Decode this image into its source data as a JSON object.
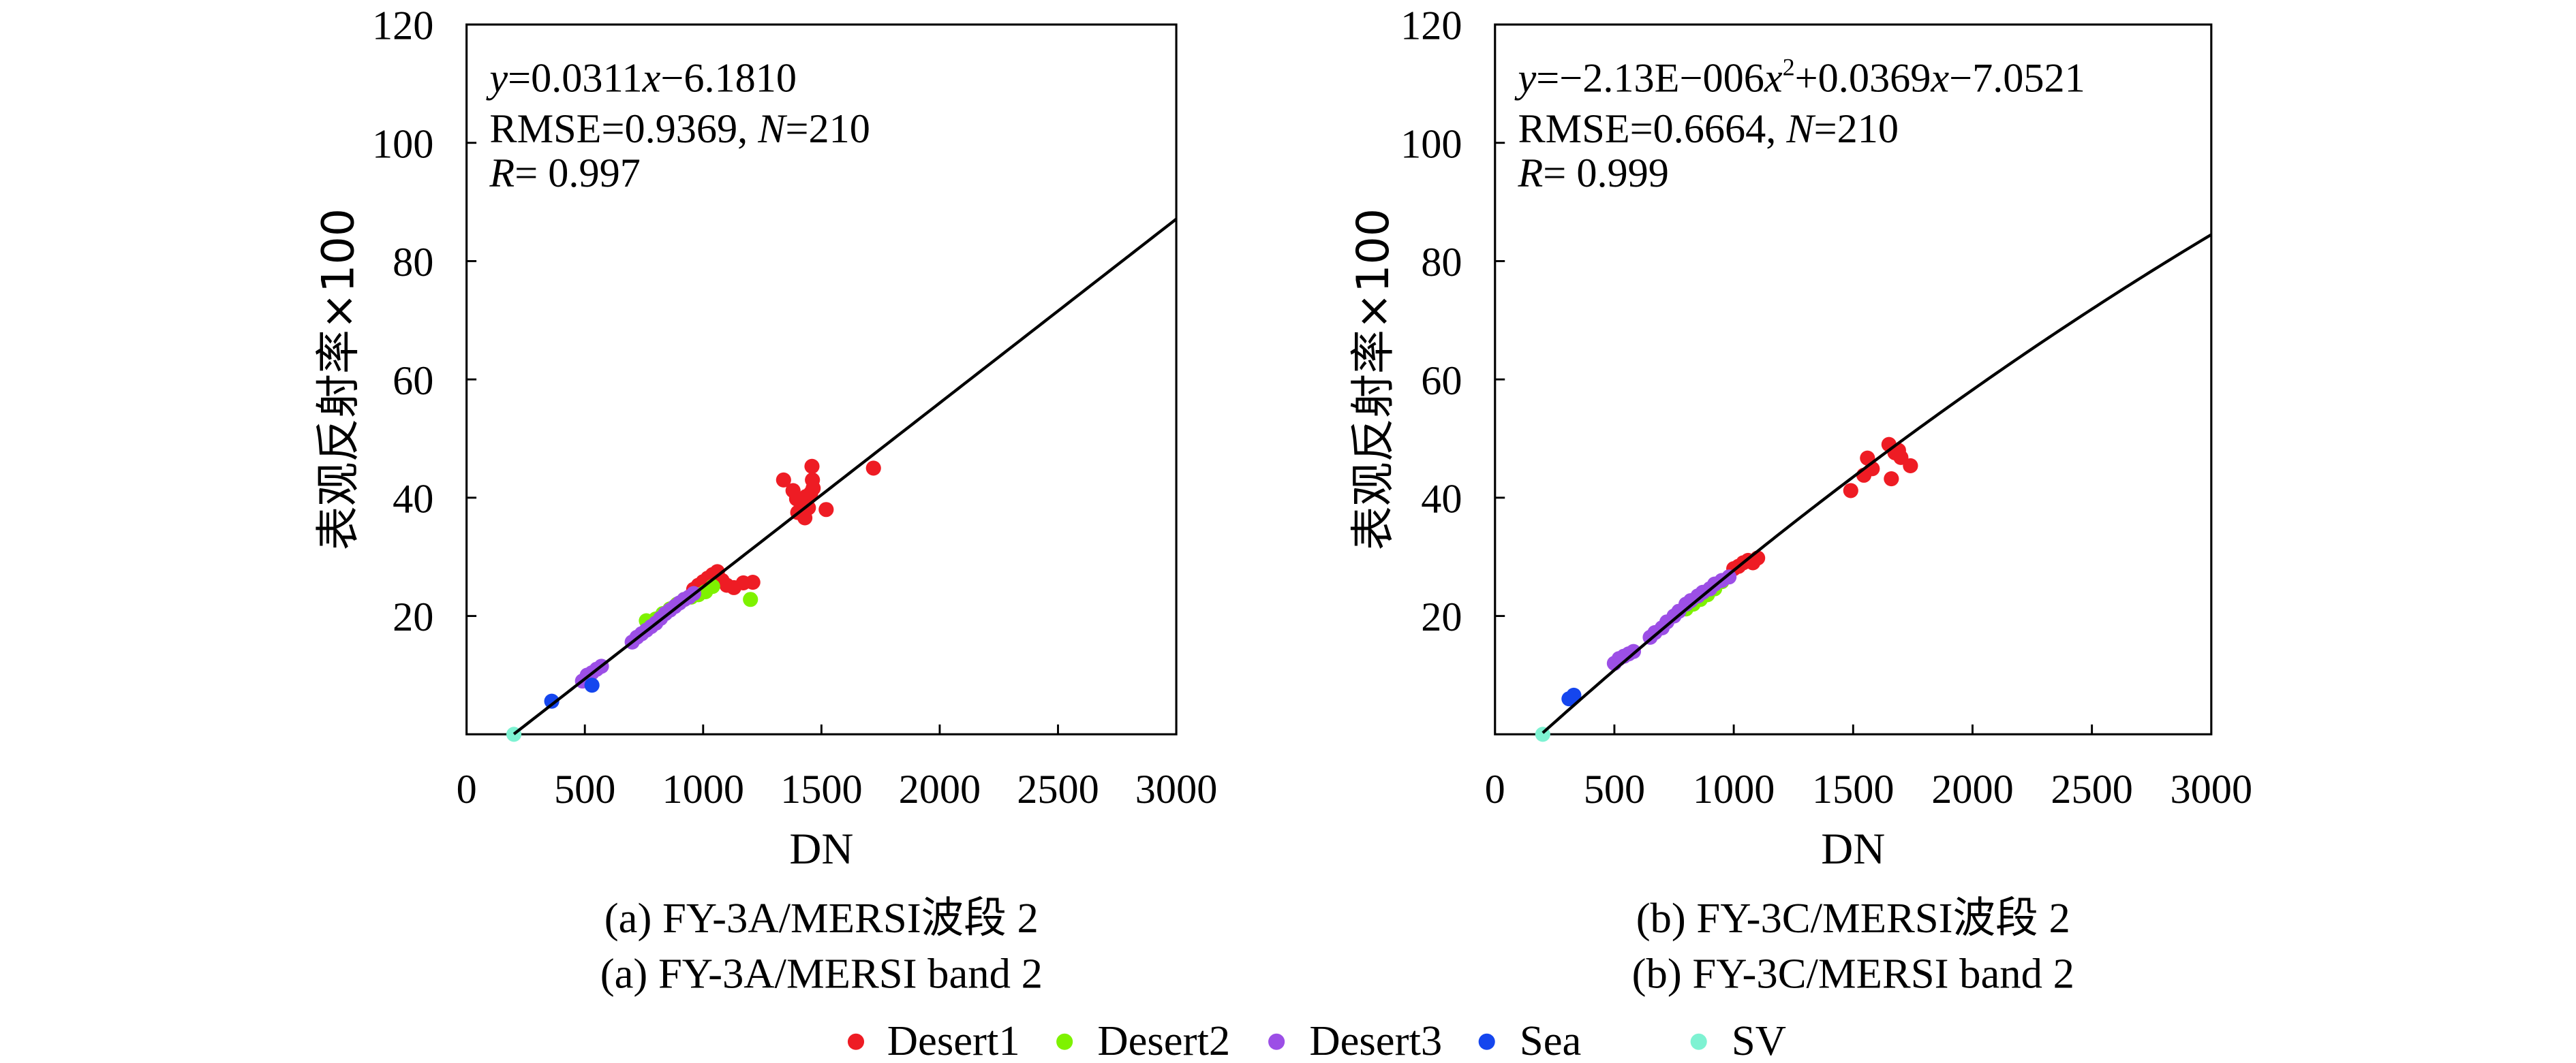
{
  "chart_data": [
    {
      "type": "scatter",
      "panel_id": "a",
      "xlabel": "DN",
      "ylabel": "表观反射率×100",
      "xlim": [
        0,
        3000
      ],
      "ylim": [
        0,
        120
      ],
      "xticks": [
        0,
        500,
        1000,
        1500,
        2000,
        2500,
        3000
      ],
      "yticks": [
        20,
        40,
        60,
        80,
        100,
        120
      ],
      "equation": {
        "line1": {
          "y": "y",
          "body": "=0.0311",
          "x": "x",
          "tail": "−6.1810"
        },
        "line2": {
          "pre": "RMSE=0.9369, ",
          "n": "N",
          "post": "=210"
        },
        "line3": {
          "r": "R",
          "post": "= 0.997"
        }
      },
      "caption_cn": "(a) FY-3A/MERSI波段 2",
      "caption_en": "(a) FY-3A/MERSI band 2",
      "fit": {
        "kind": "linear",
        "coef": [
          -6.181,
          0.0311,
          0
        ],
        "x_range": [
          200,
          3000
        ]
      },
      "series": [
        {
          "name": "Desert1",
          "points": [
            [
              1340,
              43
            ],
            [
              1380,
              41.2
            ],
            [
              1395,
              39.8
            ],
            [
              1400,
              37.5
            ],
            [
              1420,
              38.6
            ],
            [
              1430,
              36.6
            ],
            [
              1435,
              40.2
            ],
            [
              1445,
              38.3
            ],
            [
              1455,
              40.8
            ],
            [
              1460,
              45.3
            ],
            [
              1462,
              43.0
            ],
            [
              1465,
              41.6
            ],
            [
              1520,
              38.0
            ],
            [
              1720,
              45.0
            ],
            [
              960,
              24.5
            ],
            [
              980,
              25.2
            ],
            [
              1000,
              25.8
            ],
            [
              1020,
              26.4
            ],
            [
              1040,
              27.0
            ],
            [
              1060,
              27.5
            ],
            [
              1080,
              26.0
            ],
            [
              1100,
              25.2
            ],
            [
              1130,
              24.8
            ],
            [
              1170,
              25.6
            ],
            [
              1210,
              25.7
            ]
          ]
        },
        {
          "name": "Desert2",
          "points": [
            [
              760,
              19.2
            ],
            [
              800,
              19.5
            ],
            [
              830,
              20.4
            ],
            [
              860,
              21.2
            ],
            [
              890,
              22.0
            ],
            [
              920,
              22.8
            ],
            [
              950,
              23.2
            ],
            [
              980,
              23.6
            ],
            [
              1010,
              24.1
            ],
            [
              1040,
              25.0
            ],
            [
              1200,
              22.8
            ]
          ]
        },
        {
          "name": "Desert3",
          "points": [
            [
              490,
              9.0
            ],
            [
              510,
              10.0
            ],
            [
              530,
              10.4
            ],
            [
              550,
              11.0
            ],
            [
              570,
              11.5
            ],
            [
              700,
              15.6
            ],
            [
              720,
              16.4
            ],
            [
              740,
              17.0
            ],
            [
              760,
              17.6
            ],
            [
              780,
              18.2
            ],
            [
              800,
              18.8
            ],
            [
              820,
              19.6
            ],
            [
              840,
              20.4
            ],
            [
              860,
              21.0
            ],
            [
              880,
              21.6
            ],
            [
              900,
              22.2
            ],
            [
              920,
              22.8
            ],
            [
              940,
              23.2
            ],
            [
              960,
              23.8
            ]
          ]
        },
        {
          "name": "Sea",
          "points": [
            [
              360,
              5.6
            ],
            [
              530,
              8.3
            ]
          ]
        },
        {
          "name": "SV",
          "points": [
            [
              200,
              0.0
            ]
          ]
        }
      ]
    },
    {
      "type": "scatter",
      "panel_id": "b",
      "xlabel": "DN",
      "ylabel": "表观反射率×100",
      "xlim": [
        0,
        3000
      ],
      "ylim": [
        0,
        120
      ],
      "xticks": [
        0,
        500,
        1000,
        1500,
        2000,
        2500,
        3000
      ],
      "yticks": [
        20,
        40,
        60,
        80,
        100,
        120
      ],
      "equation": {
        "line1": {
          "y": "y",
          "body": "=−2.13E−006",
          "x": "x",
          "sup": "2",
          "mid": "+0.0369",
          "x2": "x",
          "tail": "−7.0521"
        },
        "line2": {
          "pre": "RMSE=0.6664, ",
          "n": "N",
          "post": "=210"
        },
        "line3": {
          "r": "R",
          "post": "= 0.999"
        }
      },
      "caption_cn": "(b) FY-3C/MERSI波段 2",
      "caption_en": "(b) FY-3C/MERSI band 2",
      "fit": {
        "kind": "quadratic",
        "coef": [
          -7.0521,
          0.0369,
          -2.13e-06
        ],
        "x_range": [
          200,
          3000
        ]
      },
      "series": [
        {
          "name": "Desert1",
          "points": [
            [
              1490,
              41.2
            ],
            [
              1545,
              43.8
            ],
            [
              1560,
              46.7
            ],
            [
              1580,
              44.9
            ],
            [
              1650,
              49.0
            ],
            [
              1660,
              43.2
            ],
            [
              1675,
              47.6
            ],
            [
              1690,
              48.0
            ],
            [
              1700,
              46.8
            ],
            [
              1740,
              45.4
            ],
            [
              1000,
              28.0
            ],
            [
              1020,
              28.4
            ],
            [
              1040,
              29.0
            ],
            [
              1060,
              29.4
            ],
            [
              1080,
              29.0
            ],
            [
              1100,
              29.8
            ]
          ]
        },
        {
          "name": "Desert2",
          "points": [
            [
              800,
              21.2
            ],
            [
              830,
              22.0
            ],
            [
              860,
              22.8
            ],
            [
              890,
              23.6
            ],
            [
              920,
              24.6
            ],
            [
              950,
              25.8
            ]
          ]
        },
        {
          "name": "Desert3",
          "points": [
            [
              500,
              12.0
            ],
            [
              520,
              12.8
            ],
            [
              540,
              13.2
            ],
            [
              560,
              13.6
            ],
            [
              580,
              14.0
            ],
            [
              650,
              16.4
            ],
            [
              670,
              17.2
            ],
            [
              700,
              18.0
            ],
            [
              720,
              19.0
            ],
            [
              750,
              20.0
            ],
            [
              770,
              20.8
            ],
            [
              800,
              22.0
            ],
            [
              820,
              22.6
            ],
            [
              850,
              23.4
            ],
            [
              870,
              24.0
            ],
            [
              900,
              24.6
            ],
            [
              920,
              25.4
            ],
            [
              950,
              26.0
            ],
            [
              980,
              26.6
            ]
          ]
        },
        {
          "name": "Sea",
          "points": [
            [
              310,
              6.0
            ],
            [
              330,
              6.6
            ]
          ]
        },
        {
          "name": "SV",
          "points": [
            [
              200,
              0.0
            ]
          ]
        }
      ]
    }
  ],
  "legend": [
    {
      "name": "Desert1",
      "color": "#ee1c24"
    },
    {
      "name": "Desert2",
      "color": "#7ef200"
    },
    {
      "name": "Desert3",
      "color": "#9c4fe6"
    },
    {
      "name": "Sea",
      "color": "#1546ee"
    },
    {
      "name": "SV",
      "color": "#7ef2d2"
    }
  ]
}
